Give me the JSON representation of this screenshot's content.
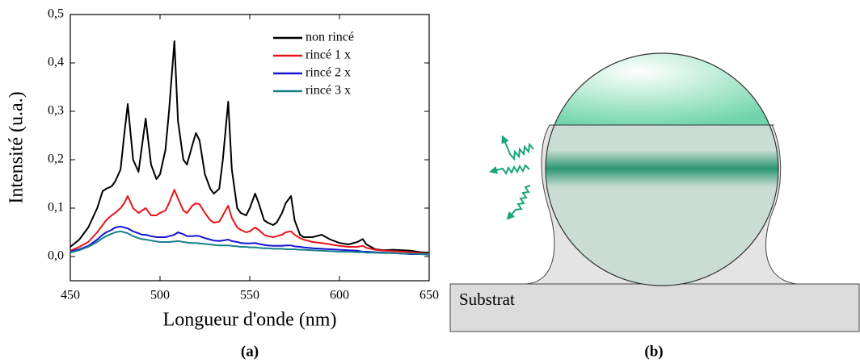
{
  "chart_data": {
    "type": "line",
    "xlabel": "Longueur d'onde (nm)",
    "ylabel": "Intensité (u.a.)",
    "caption": "(a)",
    "xlim": [
      450,
      650
    ],
    "xticks": [
      450,
      500,
      550,
      600,
      650
    ],
    "ylim": [
      -0.05,
      0.5
    ],
    "yticks": [
      {
        "value": 0,
        "label": "0,0"
      },
      {
        "value": 0.1,
        "label": "0,1"
      },
      {
        "value": 0.2,
        "label": "0,2"
      },
      {
        "value": 0.3,
        "label": "0,3"
      },
      {
        "value": 0.4,
        "label": "0,4"
      },
      {
        "value": 0.5,
        "label": "0,5"
      }
    ],
    "legend": "upper right",
    "x": [
      450,
      455,
      460,
      465,
      468,
      470,
      473,
      475,
      478,
      480,
      482,
      485,
      488,
      490,
      492,
      495,
      498,
      500,
      503,
      505,
      508,
      510,
      513,
      515,
      518,
      520,
      522,
      525,
      528,
      530,
      533,
      535,
      538,
      540,
      543,
      545,
      548,
      550,
      553,
      555,
      558,
      560,
      563,
      565,
      568,
      570,
      573,
      575,
      578,
      580,
      585,
      590,
      595,
      600,
      605,
      610,
      613,
      615,
      620,
      625,
      630,
      635,
      640,
      645,
      650
    ],
    "series": [
      {
        "name": "non rincé",
        "color": "#000000",
        "values": [
          0.02,
          0.035,
          0.06,
          0.1,
          0.135,
          0.14,
          0.145,
          0.155,
          0.18,
          0.25,
          0.315,
          0.2,
          0.175,
          0.23,
          0.285,
          0.19,
          0.16,
          0.17,
          0.22,
          0.3,
          0.445,
          0.28,
          0.2,
          0.19,
          0.23,
          0.255,
          0.24,
          0.17,
          0.14,
          0.13,
          0.14,
          0.2,
          0.32,
          0.18,
          0.1,
          0.09,
          0.085,
          0.1,
          0.13,
          0.11,
          0.075,
          0.07,
          0.065,
          0.07,
          0.09,
          0.11,
          0.125,
          0.075,
          0.045,
          0.04,
          0.04,
          0.045,
          0.035,
          0.028,
          0.025,
          0.03,
          0.036,
          0.025,
          0.015,
          0.013,
          0.014,
          0.013,
          0.012,
          0.009,
          0.008
        ]
      },
      {
        "name": "rincé 1 x",
        "color": "#e8151b",
        "values": [
          0.012,
          0.02,
          0.03,
          0.05,
          0.065,
          0.075,
          0.085,
          0.09,
          0.1,
          0.11,
          0.125,
          0.1,
          0.09,
          0.095,
          0.1,
          0.085,
          0.085,
          0.09,
          0.095,
          0.11,
          0.138,
          0.12,
          0.095,
          0.09,
          0.105,
          0.11,
          0.108,
          0.09,
          0.075,
          0.07,
          0.072,
          0.085,
          0.105,
          0.08,
          0.06,
          0.055,
          0.05,
          0.052,
          0.06,
          0.055,
          0.045,
          0.042,
          0.04,
          0.042,
          0.045,
          0.05,
          0.052,
          0.045,
          0.038,
          0.035,
          0.03,
          0.028,
          0.025,
          0.022,
          0.02,
          0.02,
          0.022,
          0.018,
          0.014,
          0.012,
          0.011,
          0.01,
          0.009,
          0.007,
          0.006
        ]
      },
      {
        "name": "rincé 2 x",
        "color": "#1515d6",
        "values": [
          0.01,
          0.015,
          0.022,
          0.035,
          0.045,
          0.05,
          0.055,
          0.06,
          0.062,
          0.06,
          0.058,
          0.052,
          0.048,
          0.045,
          0.045,
          0.042,
          0.04,
          0.04,
          0.04,
          0.042,
          0.045,
          0.05,
          0.046,
          0.042,
          0.042,
          0.043,
          0.042,
          0.038,
          0.035,
          0.033,
          0.032,
          0.033,
          0.035,
          0.032,
          0.03,
          0.028,
          0.027,
          0.027,
          0.028,
          0.026,
          0.024,
          0.023,
          0.022,
          0.022,
          0.022,
          0.023,
          0.023,
          0.021,
          0.02,
          0.019,
          0.017,
          0.016,
          0.015,
          0.014,
          0.013,
          0.012,
          0.01,
          0.01,
          0.009,
          0.008,
          0.007,
          0.006,
          0.005,
          0.005,
          0.004
        ]
      },
      {
        "name": "rincé 3 x",
        "color": "#17808a",
        "values": [
          0.008,
          0.013,
          0.02,
          0.03,
          0.038,
          0.042,
          0.047,
          0.05,
          0.052,
          0.05,
          0.048,
          0.042,
          0.038,
          0.036,
          0.035,
          0.033,
          0.031,
          0.03,
          0.03,
          0.03,
          0.031,
          0.032,
          0.03,
          0.029,
          0.028,
          0.028,
          0.027,
          0.026,
          0.025,
          0.024,
          0.023,
          0.023,
          0.023,
          0.022,
          0.021,
          0.02,
          0.02,
          0.019,
          0.019,
          0.018,
          0.017,
          0.017,
          0.016,
          0.016,
          0.016,
          0.015,
          0.015,
          0.015,
          0.014,
          0.014,
          0.013,
          0.012,
          0.011,
          0.01,
          0.01,
          0.009,
          0.009,
          0.008,
          0.008,
          0.007,
          0.007,
          0.006,
          0.006,
          0.005,
          0.005
        ]
      }
    ]
  },
  "diagram": {
    "substrate_label": "Substrat",
    "caption": "(b)"
  }
}
